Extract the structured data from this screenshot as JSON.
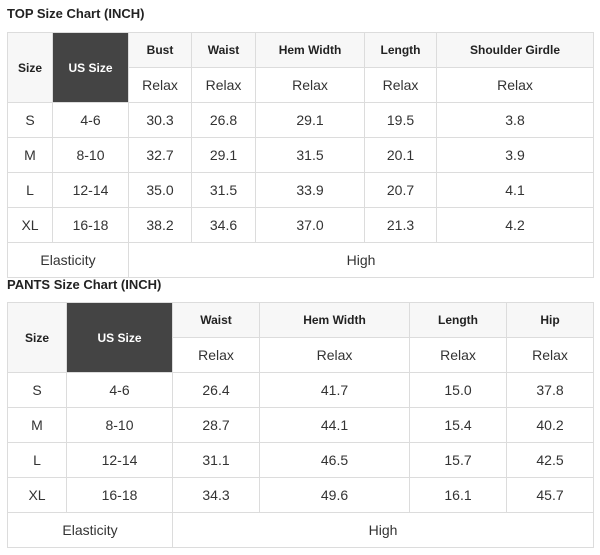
{
  "top": {
    "title": "TOP Size Chart (INCH)",
    "headers": [
      "Size",
      "US Size",
      "Bust",
      "Waist",
      "Hem Width",
      "Length",
      "Shoulder Girdle"
    ],
    "subheaders": [
      "Relax",
      "Relax",
      "Relax",
      "Relax",
      "Relax"
    ],
    "rows": [
      [
        "S",
        "4-6",
        "30.3",
        "26.8",
        "29.1",
        "19.5",
        "3.8"
      ],
      [
        "M",
        "8-10",
        "32.7",
        "29.1",
        "31.5",
        "20.1",
        "3.9"
      ],
      [
        "L",
        "12-14",
        "35.0",
        "31.5",
        "33.9",
        "20.7",
        "4.1"
      ],
      [
        "XL",
        "16-18",
        "38.2",
        "34.6",
        "37.0",
        "21.3",
        "4.2"
      ]
    ],
    "footer": [
      "Elasticity",
      "High"
    ]
  },
  "pants": {
    "title": "PANTS Size Chart (INCH)",
    "headers": [
      "Size",
      "US Size",
      "Waist",
      "Hem Width",
      "Length",
      "Hip"
    ],
    "subheaders": [
      "Relax",
      "Relax",
      "Relax",
      "Relax"
    ],
    "rows": [
      [
        "S",
        "4-6",
        "26.4",
        "41.7",
        "15.0",
        "37.8"
      ],
      [
        "M",
        "8-10",
        "28.7",
        "44.1",
        "15.4",
        "40.2"
      ],
      [
        "L",
        "12-14",
        "31.1",
        "46.5",
        "15.7",
        "42.5"
      ],
      [
        "XL",
        "16-18",
        "34.3",
        "49.6",
        "16.1",
        "45.7"
      ]
    ],
    "footer": [
      "Elasticity",
      "High"
    ]
  }
}
